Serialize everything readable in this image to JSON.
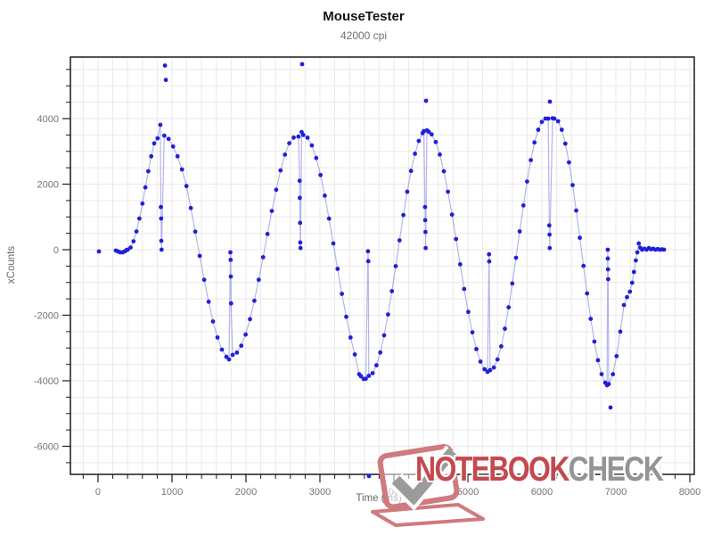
{
  "header": {
    "title": "MouseTester",
    "subtitle": "42000 cpi"
  },
  "watermark": {
    "brand_red": "NOTEBOOK",
    "brand_gray": "CHECK",
    "icon": "laptop-check-icon",
    "red_color": "#c4494f",
    "gray_color": "#949494"
  },
  "chart_data": {
    "type": "scatter",
    "title": "MouseTester",
    "subtitle": "42000 cpi",
    "xlabel": "Time (ms)",
    "ylabel": "xCounts",
    "xlim": [
      -373,
      8060
    ],
    "ylim": [
      -6857,
      5878
    ],
    "grid": true,
    "legend": "none",
    "x_major_ticks": [
      0,
      1000,
      2000,
      3000,
      4000,
      5000,
      6000,
      7000,
      8000
    ],
    "x_minor_step": 200,
    "y_major_ticks": [
      -6000,
      -4000,
      -2000,
      0,
      2000,
      4000
    ],
    "y_minor_step": 500,
    "colors": {
      "dot": "#2020d8",
      "line": "rgba(90,90,215,0.45)",
      "grid": "#e9e9e9",
      "axis": "#1a1a1a",
      "tick_label": "#757575"
    },
    "series": [
      {
        "name": "xCounts",
        "line_breaks": [
          1
        ],
        "points": [
          [
            12,
            -54
          ],
          [
            241,
            -27
          ],
          [
            271,
            -54
          ],
          [
            301,
            -81
          ],
          [
            331,
            -81
          ],
          [
            361,
            -54
          ],
          [
            385,
            -14
          ],
          [
            400,
            0
          ],
          [
            440,
            65
          ],
          [
            480,
            255
          ],
          [
            520,
            555
          ],
          [
            560,
            950
          ],
          [
            600,
            1406
          ],
          [
            640,
            1900
          ],
          [
            680,
            2394
          ],
          [
            720,
            2850
          ],
          [
            760,
            3245
          ],
          [
            805,
            3400
          ],
          [
            843,
            3810
          ],
          [
            850,
            1300
          ],
          [
            853,
            950
          ],
          [
            856,
            270
          ],
          [
            859,
            0
          ],
          [
            895,
            3480
          ],
          [
            955,
            3380
          ],
          [
            1015,
            3150
          ],
          [
            1075,
            2850
          ],
          [
            1135,
            2450
          ],
          [
            1195,
            1940
          ],
          [
            1255,
            1270
          ],
          [
            1315,
            550
          ],
          [
            1375,
            -190
          ],
          [
            1435,
            -920
          ],
          [
            1495,
            -1590
          ],
          [
            1555,
            -2190
          ],
          [
            1615,
            -2680
          ],
          [
            1675,
            -3050
          ],
          [
            1735,
            -3270
          ],
          [
            1771,
            -3350
          ],
          [
            1790,
            -80
          ],
          [
            1793,
            -310
          ],
          [
            1796,
            -820
          ],
          [
            1799,
            -1640
          ],
          [
            1819,
            -3210
          ],
          [
            1878,
            -3140
          ],
          [
            1937,
            -2930
          ],
          [
            1996,
            -2590
          ],
          [
            2055,
            -2120
          ],
          [
            2114,
            -1560
          ],
          [
            2173,
            -920
          ],
          [
            2232,
            -230
          ],
          [
            2291,
            480
          ],
          [
            2350,
            1180
          ],
          [
            2409,
            1830
          ],
          [
            2468,
            2420
          ],
          [
            2527,
            2900
          ],
          [
            2586,
            3250
          ],
          [
            2645,
            3420
          ],
          [
            2710,
            3450
          ],
          [
            2725,
            2100
          ],
          [
            2728,
            1580
          ],
          [
            2731,
            820
          ],
          [
            2734,
            220
          ],
          [
            2737,
            50
          ],
          [
            2752,
            3590
          ],
          [
            2775,
            3500
          ],
          [
            2833,
            3419
          ],
          [
            2891,
            3182
          ],
          [
            2949,
            2797
          ],
          [
            3007,
            2279
          ],
          [
            3065,
            1650
          ],
          [
            3123,
            947
          ],
          [
            3181,
            192
          ],
          [
            3239,
            -585
          ],
          [
            3297,
            -1347
          ],
          [
            3355,
            -2050
          ],
          [
            3413,
            -2679
          ],
          [
            3471,
            -3197
          ],
          [
            3530,
            -3800
          ],
          [
            3554,
            -3864
          ],
          [
            3590,
            -3946
          ],
          [
            3620,
            -3940
          ],
          [
            3650,
            -50
          ],
          [
            3653,
            -350
          ],
          [
            3660,
            -3850
          ],
          [
            3712,
            -3768
          ],
          [
            3764,
            -3528
          ],
          [
            3816,
            -3138
          ],
          [
            3868,
            -2614
          ],
          [
            3920,
            -1978
          ],
          [
            3972,
            -1266
          ],
          [
            4024,
            -502
          ],
          [
            4076,
            284
          ],
          [
            4128,
            1056
          ],
          [
            4180,
            1768
          ],
          [
            4232,
            2404
          ],
          [
            4284,
            2928
          ],
          [
            4336,
            3318
          ],
          [
            4388,
            3557
          ],
          [
            4405,
            3620
          ],
          [
            4420,
            1300
          ],
          [
            4423,
            900
          ],
          [
            4426,
            540
          ],
          [
            4429,
            50
          ],
          [
            4446,
            3640
          ],
          [
            4470,
            3600
          ],
          [
            4510,
            3519
          ],
          [
            4565,
            3285
          ],
          [
            4620,
            2904
          ],
          [
            4675,
            2391
          ],
          [
            4730,
            1768
          ],
          [
            4785,
            1071
          ],
          [
            4840,
            323
          ],
          [
            4895,
            -446
          ],
          [
            4950,
            -1201
          ],
          [
            5005,
            -1898
          ],
          [
            5060,
            -2521
          ],
          [
            5115,
            -3034
          ],
          [
            5170,
            -3415
          ],
          [
            5225,
            -3649
          ],
          [
            5265,
            -3728
          ],
          [
            5285,
            -140
          ],
          [
            5288,
            -360
          ],
          [
            5300,
            -3680
          ],
          [
            5350,
            -3596
          ],
          [
            5400,
            -3350
          ],
          [
            5450,
            -2950
          ],
          [
            5500,
            -2413
          ],
          [
            5550,
            -1760
          ],
          [
            5600,
            -1030
          ],
          [
            5650,
            -247
          ],
          [
            5700,
            559
          ],
          [
            5750,
            1351
          ],
          [
            5800,
            2080
          ],
          [
            5850,
            2733
          ],
          [
            5900,
            3270
          ],
          [
            5950,
            3661
          ],
          [
            6000,
            3901
          ],
          [
            6048,
            4000
          ],
          [
            6085,
            4000
          ],
          [
            6100,
            740
          ],
          [
            6103,
            460
          ],
          [
            6106,
            50
          ],
          [
            6145,
            4010
          ],
          [
            6169,
            4000
          ],
          [
            6219,
            3920
          ],
          [
            6268,
            3659
          ],
          [
            6317,
            3235
          ],
          [
            6366,
            2664
          ],
          [
            6415,
            1970
          ],
          [
            6464,
            1194
          ],
          [
            6513,
            363
          ],
          [
            6562,
            -494
          ],
          [
            6611,
            -1335
          ],
          [
            6660,
            -2110
          ],
          [
            6709,
            -2804
          ],
          [
            6758,
            -3375
          ],
          [
            6807,
            -3799
          ],
          [
            6856,
            -4060
          ],
          [
            6880,
            -4136
          ],
          [
            6890,
            0
          ],
          [
            6892,
            -270
          ],
          [
            6894,
            -600
          ],
          [
            6896,
            -900
          ],
          [
            6904,
            -4100
          ],
          [
            6960,
            -3800
          ],
          [
            7010,
            -3250
          ],
          [
            7060,
            -2500
          ],
          [
            7110,
            -1690
          ],
          [
            7150,
            -1450
          ],
          [
            7190,
            -1280
          ],
          [
            7220,
            -1010
          ],
          [
            7245,
            -680
          ],
          [
            7270,
            -330
          ],
          [
            7290,
            -80
          ],
          [
            7310,
            190
          ],
          [
            7330,
            60
          ],
          [
            7355,
            0
          ],
          [
            7385,
            30
          ],
          [
            7415,
            0
          ],
          [
            7445,
            50
          ],
          [
            7475,
            10
          ],
          [
            7505,
            30
          ],
          [
            7535,
            0
          ],
          [
            7565,
            20
          ],
          [
            7595,
            0
          ],
          [
            7625,
            10
          ],
          [
            7650,
            0
          ]
        ],
        "outlier_points": [
          [
            905,
            5620
          ],
          [
            917,
            5180
          ],
          [
            2759,
            5660
          ],
          [
            3663,
            -6910
          ],
          [
            4434,
            4544
          ],
          [
            6108,
            4517
          ],
          [
            6928,
            -4816
          ]
        ]
      }
    ]
  }
}
